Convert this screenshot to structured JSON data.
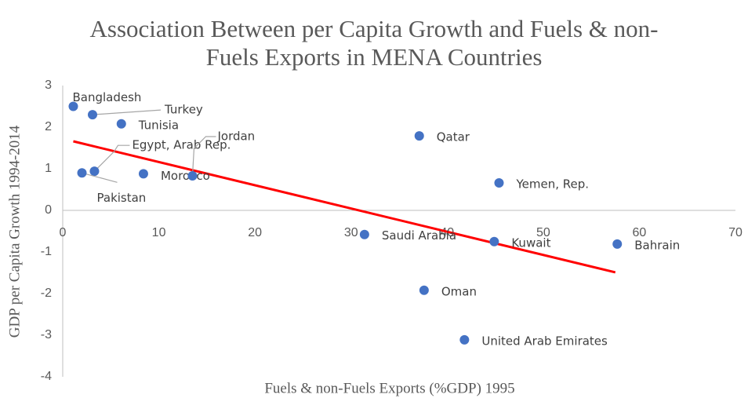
{
  "chart_data": {
    "type": "scatter",
    "title": [
      "Association Between per Capita Growth and Fuels & non-",
      "Fuels Exports in MENA Countries"
    ],
    "x_label": "Fuels & non-Fuels Exports (%GDP) 1995",
    "y_label": "GDP per Capita Growth 1994-2014",
    "labels": [
      "Bangladesh",
      "Turkey",
      "Tunisia",
      "Egypt, Arab Rep.",
      "Pakistan",
      "Morocco",
      "Jordan",
      "Qatar",
      "Yemen, Rep.",
      "Saudi Arabia",
      "Kuwait",
      "Bahrain",
      "Oman",
      "United Arab Emirates"
    ],
    "x": [
      1.1,
      3.1,
      6.1,
      3.3,
      2.0,
      8.4,
      13.5,
      37.1,
      45.4,
      31.4,
      44.9,
      57.7,
      37.6,
      41.8
    ],
    "y": [
      2.5,
      2.3,
      2.08,
      0.94,
      0.9,
      0.88,
      0.83,
      1.79,
      0.66,
      -0.58,
      -0.75,
      -0.81,
      -1.92,
      -3.11
    ],
    "color": "#4472c4",
    "trendline": {
      "color": "#ff0000",
      "x": [
        1.1,
        57.5
      ],
      "y": [
        1.66,
        -1.49
      ]
    },
    "xlim": [
      0,
      70
    ],
    "xticks": [
      0,
      10,
      20,
      30,
      40,
      50,
      60,
      70
    ],
    "ylim": [
      -4,
      3
    ],
    "yticks": [
      -4,
      -3,
      -2,
      -1,
      0,
      1,
      2,
      3
    ],
    "grid": false
  }
}
